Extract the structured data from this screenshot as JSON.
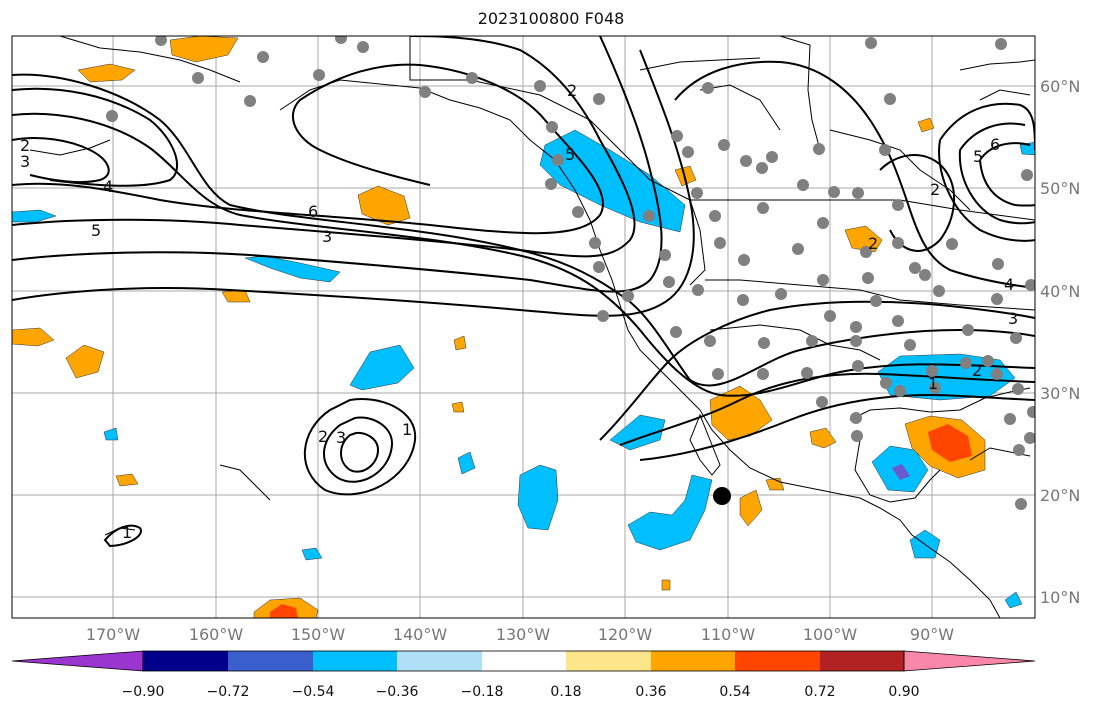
{
  "title": "2023100800 F048",
  "map": {
    "lon_ticks": [
      "170°W",
      "160°W",
      "150°W",
      "140°W",
      "130°W",
      "120°W",
      "110°W",
      "100°W",
      "90°W"
    ],
    "lat_ticks": [
      "60°N",
      "50°N",
      "40°N",
      "30°N",
      "20°N",
      "10°N"
    ],
    "grid": true
  },
  "colorbar": {
    "labels": [
      "−0.90",
      "−0.72",
      "−0.54",
      "−0.36",
      "−0.18",
      "0.18",
      "0.36",
      "0.54",
      "0.72",
      "0.90"
    ],
    "colors": [
      "#9a35d0",
      "#00008b",
      "#3a5fcd",
      "#00bfff",
      "#b0e0f6",
      "#ffffff",
      "#fde68a",
      "#ffa500",
      "#ff4500",
      "#b22222",
      "#f987a9"
    ]
  },
  "contour_labels": [
    "2",
    "3",
    "4",
    "5",
    "6",
    "3",
    "1",
    "2",
    "3",
    "1",
    "5",
    "2",
    "6",
    "5",
    "2",
    "4",
    "3",
    "2",
    "1",
    "2"
  ]
}
